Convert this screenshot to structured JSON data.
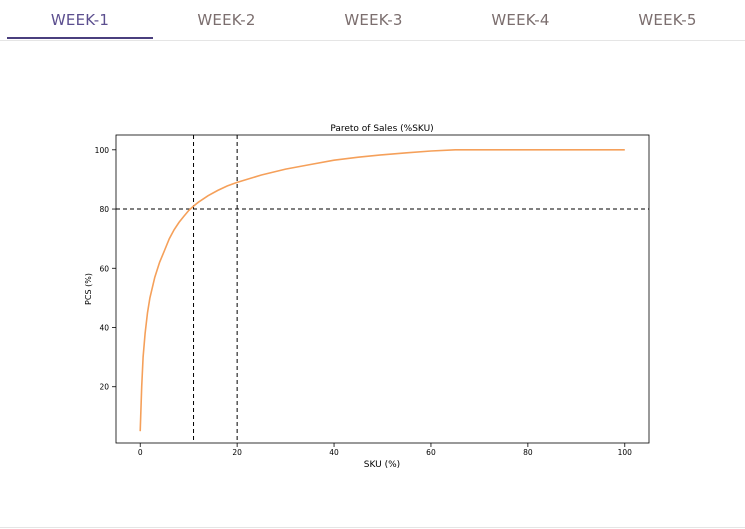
{
  "tabs": [
    {
      "label": "WEEK-1",
      "active": true
    },
    {
      "label": "WEEK-2",
      "active": false
    },
    {
      "label": "WEEK-3",
      "active": false
    },
    {
      "label": "WEEK-4",
      "active": false
    },
    {
      "label": "WEEK-5",
      "active": false
    }
  ],
  "colors": {
    "curve": "#f5a05a",
    "accent": "#4a3f7e",
    "tab_text": "#7b6e6e"
  },
  "chart_data": {
    "type": "line",
    "title": "Pareto of Sales (%SKU)",
    "xlabel": "SKU (%)",
    "ylabel": "PCS (%)",
    "xlim": [
      -5,
      105
    ],
    "ylim": [
      1,
      105
    ],
    "xticks": [
      0,
      20,
      40,
      60,
      80,
      100
    ],
    "yticks": [
      20,
      40,
      60,
      80,
      100
    ],
    "grid": false,
    "series": [
      {
        "x": [
          0,
          0.3,
          0.6,
          1,
          1.5,
          2,
          3,
          4,
          5,
          6,
          7,
          8,
          9,
          10,
          11,
          12,
          14,
          16,
          18,
          20,
          25,
          30,
          35,
          40,
          45,
          50,
          55,
          60,
          65,
          70,
          75,
          80,
          85,
          90,
          95,
          100
        ],
        "y": [
          5,
          20,
          30,
          38,
          45,
          50,
          57,
          62,
          66,
          70,
          73,
          75.5,
          77.5,
          79.5,
          81,
          82.3,
          84.5,
          86.3,
          87.8,
          89,
          91.5,
          93.5,
          95,
          96.5,
          97.5,
          98.3,
          99,
          99.6,
          100,
          100,
          100,
          100,
          100,
          100,
          100,
          100
        ]
      }
    ],
    "reference_lines": {
      "horizontal": [
        80
      ],
      "vertical": [
        11,
        20
      ]
    }
  }
}
